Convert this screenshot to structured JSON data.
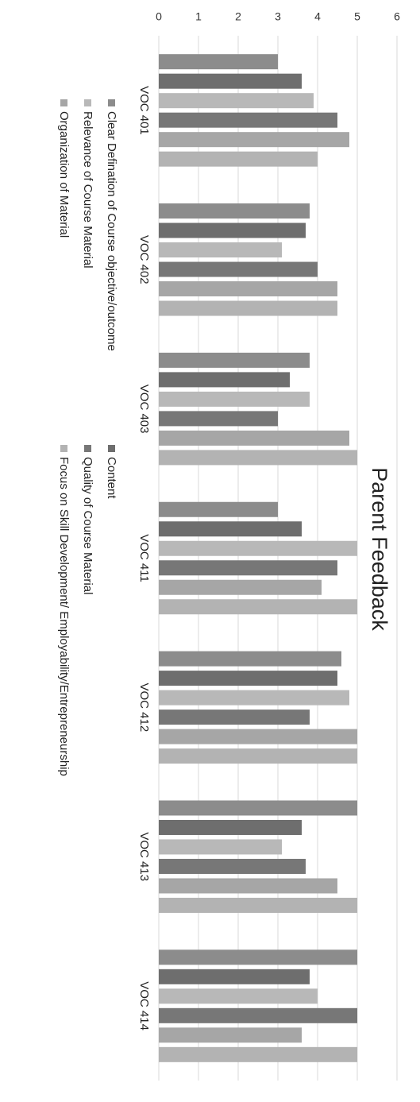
{
  "chart_data": {
    "type": "bar",
    "title": "Parent Feedback",
    "xlabel": "",
    "ylabel": "",
    "ylim": [
      0,
      6
    ],
    "yticks": [
      0,
      1,
      2,
      3,
      4,
      5,
      6
    ],
    "grid": true,
    "orientation": "rotated-90-clockwise",
    "legend_position": "bottom",
    "categories": [
      "VOC 401",
      "VOC 402",
      "VOC 403",
      "VOC 411",
      "VOC 412",
      "VOC 413",
      "VOC 414"
    ],
    "series": [
      {
        "name": "Clear Defination of Course objective/outcome",
        "color": "#8c8c8c",
        "values": [
          3.0,
          3.8,
          3.8,
          3.0,
          4.6,
          5.0,
          5.0
        ]
      },
      {
        "name": "Content",
        "color": "#6e6e6e",
        "values": [
          3.6,
          3.7,
          3.3,
          3.6,
          4.5,
          3.6,
          3.8
        ]
      },
      {
        "name": "Relevance of Course Material",
        "color": "#b8b8b8",
        "values": [
          3.9,
          3.1,
          3.8,
          5.0,
          4.8,
          3.1,
          4.0
        ]
      },
      {
        "name": "Quality of Course Material",
        "color": "#777777",
        "values": [
          4.5,
          4.0,
          3.0,
          4.5,
          3.8,
          3.7,
          5.0
        ]
      },
      {
        "name": "Organization of Material",
        "color": "#a6a6a6",
        "values": [
          4.8,
          4.5,
          4.8,
          4.1,
          5.0,
          4.5,
          3.6
        ]
      },
      {
        "name": "Focus on Skill Development/ Employability/Entrepreneurship",
        "color": "#b3b3b3",
        "values": [
          4.0,
          4.5,
          5.0,
          5.0,
          5.0,
          5.0,
          5.0
        ]
      }
    ]
  }
}
